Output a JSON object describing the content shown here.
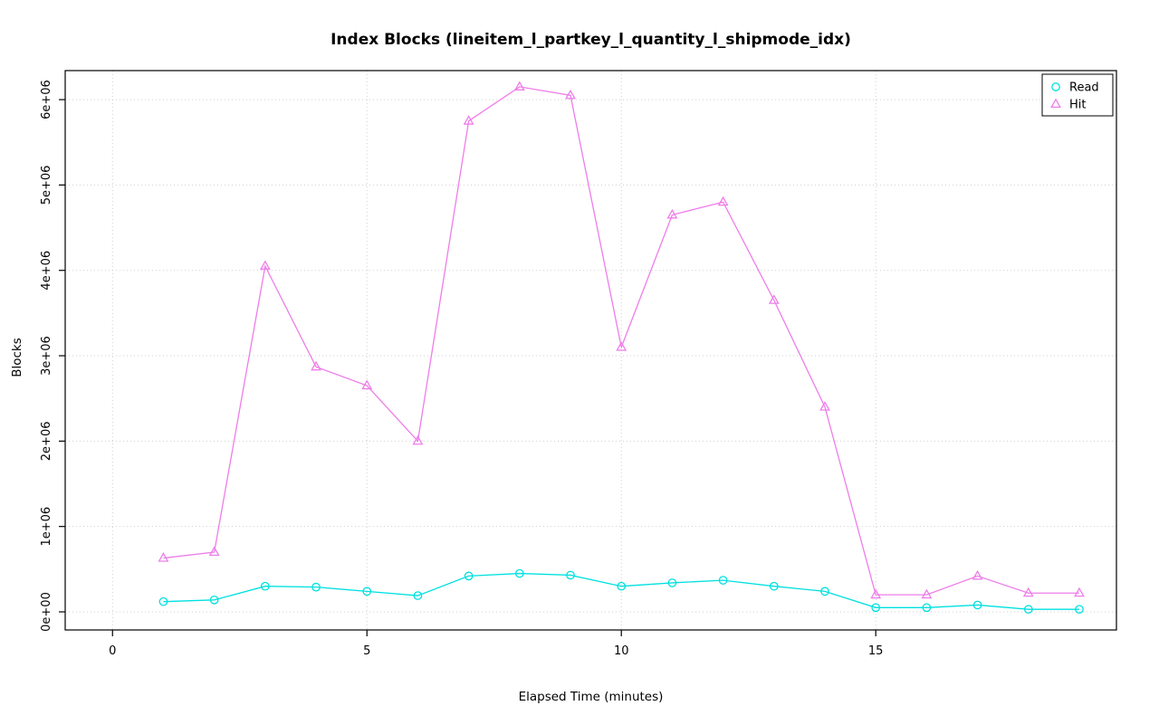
{
  "chart": {
    "title": "Index Blocks (lineitem_l_partkey_l_quantity_l_shipmode_idx)",
    "xlabel": "Elapsed Time (minutes)",
    "ylabel": "Blocks"
  },
  "chart_data": {
    "type": "line",
    "title": "Index Blocks (lineitem_l_partkey_l_quantity_l_shipmode_idx)",
    "xlabel": "Elapsed Time (minutes)",
    "ylabel": "Blocks",
    "x": [
      1,
      2,
      3,
      4,
      5,
      6,
      7,
      8,
      9,
      10,
      11,
      12,
      13,
      14,
      15,
      16,
      17,
      18,
      19
    ],
    "series": [
      {
        "name": "Read",
        "marker": "circle",
        "color": "#00e0e0",
        "values": [
          120000,
          140000,
          300000,
          290000,
          240000,
          190000,
          420000,
          450000,
          430000,
          300000,
          340000,
          370000,
          300000,
          240000,
          50000,
          50000,
          80000,
          30000,
          30000
        ]
      },
      {
        "name": "Hit",
        "marker": "triangle",
        "color": "#ee7de9",
        "values": [
          630000,
          700000,
          4050000,
          2870000,
          2650000,
          2000000,
          5750000,
          6150000,
          6050000,
          3100000,
          4650000,
          4800000,
          3650000,
          2400000,
          200000,
          200000,
          420000,
          220000,
          220000
        ]
      }
    ],
    "xticks": [
      0,
      5,
      10,
      15
    ],
    "xtick_labels": [
      "0",
      "5",
      "10",
      "15"
    ],
    "yticks": [
      0,
      1000000,
      2000000,
      3000000,
      4000000,
      5000000,
      6000000
    ],
    "ytick_labels": [
      "0e+00",
      "1e+06",
      "2e+06",
      "3e+06",
      "4e+06",
      "5e+06",
      "6e+06"
    ],
    "xlim": [
      -0.93,
      19.73
    ],
    "ylim": [
      -212000,
      6340000
    ],
    "grid": true,
    "legend_position": "top-right"
  }
}
